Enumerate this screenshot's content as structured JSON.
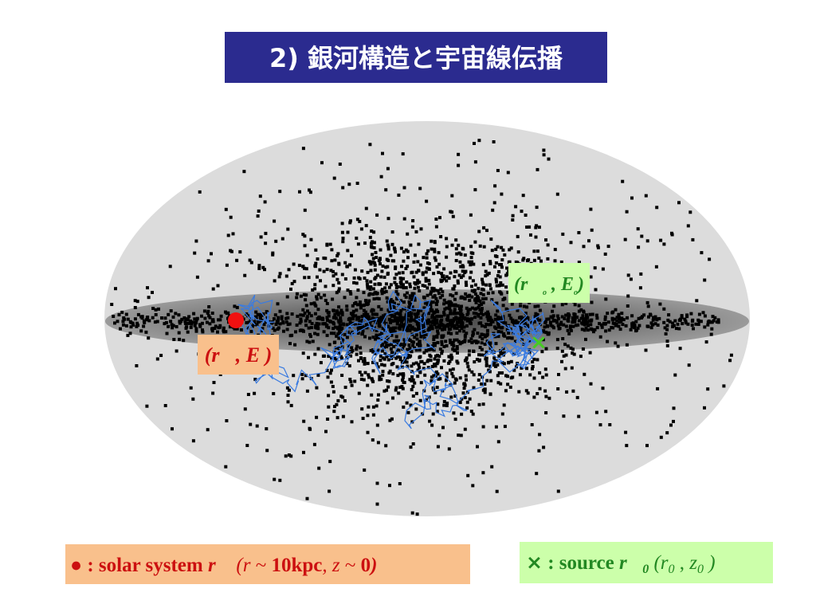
{
  "title": "2) 銀河構造と宇宙線伝播",
  "observer_label": [
    "(",
    "r⃗",
    ", ",
    "E",
    " )"
  ],
  "source_label": [
    "(",
    "r⃗",
    "o",
    " , ",
    "E",
    "o",
    ")"
  ],
  "legend_observer": [
    "●",
    " : solar system ",
    "r⃗",
    " (",
    "r",
    " ~ ",
    "10kpc",
    ", ",
    "z",
    " ~ ",
    "0",
    ")"
  ],
  "legend_source": [
    "×",
    " : source ",
    "r⃗",
    "0",
    " (",
    "r",
    "0",
    " , ",
    "z",
    "0",
    " )"
  ]
}
